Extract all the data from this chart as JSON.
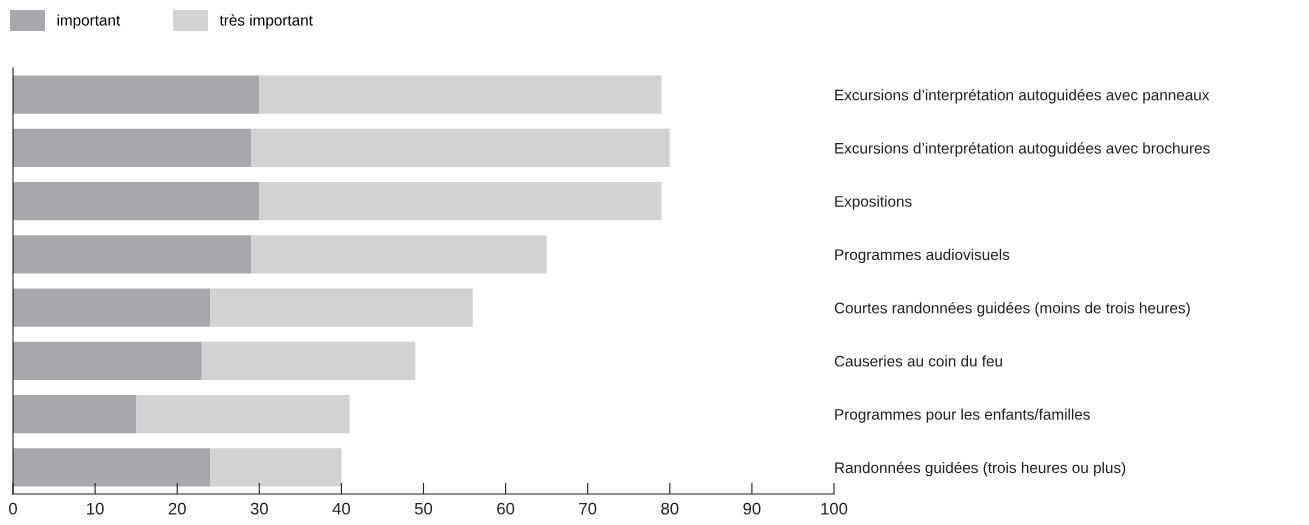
{
  "chart_data": {
    "type": "bar",
    "orientation": "horizontal",
    "stacked": true,
    "categories": [
      "Excursions d’interprétation autoguidées avec panneaux",
      "Excursions d’interprétation autoguidées avec brochures",
      "Expositions",
      "Programmes audiovisuels",
      "Courtes randonnées guidées (moins de trois heures)",
      "Causeries au coin du feu",
      "Programmes pour les enfants/familles",
      "Randonnées guidées (trois heures ou plus)"
    ],
    "series": [
      {
        "name": "important",
        "color": "#a7a8ac",
        "values": [
          30,
          29,
          30,
          29,
          24,
          23,
          15,
          24
        ]
      },
      {
        "name": "très important",
        "color": "#d1d2d4",
        "values": [
          49,
          51,
          49,
          36,
          32,
          26,
          26,
          16
        ]
      }
    ],
    "xlim": [
      0,
      100
    ],
    "xticks": [
      0,
      10,
      20,
      30,
      40,
      50,
      60,
      70,
      80,
      90,
      100
    ],
    "grid": false,
    "legend": "top left"
  }
}
